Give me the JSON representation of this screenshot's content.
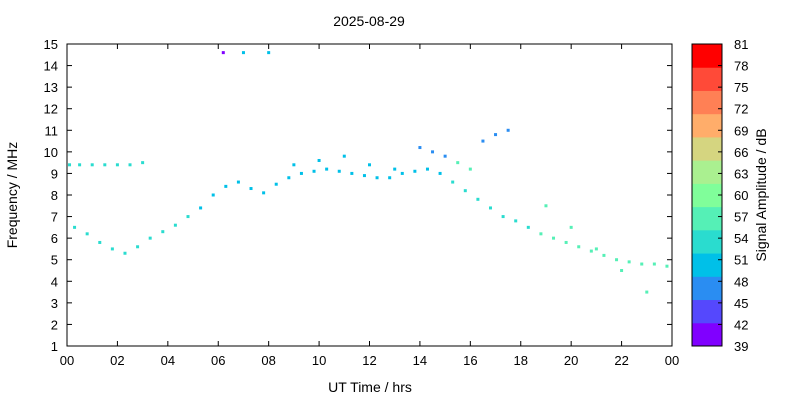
{
  "chart_data": {
    "type": "scatter",
    "title": "2025-08-29",
    "xlabel": "UT Time / hrs",
    "ylabel": "Frequency / MHz",
    "xlim": [
      0,
      24
    ],
    "ylim": [
      1,
      15
    ],
    "x_ticks": [
      "00",
      "02",
      "04",
      "06",
      "08",
      "10",
      "12",
      "14",
      "16",
      "18",
      "20",
      "22",
      "00"
    ],
    "y_ticks": [
      "1",
      "2",
      "3",
      "4",
      "5",
      "6",
      "7",
      "8",
      "9",
      "10",
      "11",
      "12",
      "13",
      "14",
      "15"
    ],
    "colorbar": {
      "label": "Signal Amplitude / dB",
      "ticks": [
        "39",
        "42",
        "45",
        "48",
        "51",
        "54",
        "57",
        "60",
        "63",
        "66",
        "69",
        "72",
        "75",
        "78",
        "81"
      ],
      "min": 39,
      "max": 81,
      "colors": [
        "#8000ff",
        "#5548fd",
        "#2a8df2",
        "#00c0e8",
        "#2adccf",
        "#55f0b6",
        "#80fe9a",
        "#aaf090",
        "#d5d580",
        "#ffad6a",
        "#ff8055",
        "#ff4a38",
        "#ff0000"
      ]
    },
    "series": [
      {
        "x": [
          0.1,
          0.5,
          1.0,
          1.5,
          2.0,
          2.5,
          3.0,
          0.3,
          0.8,
          1.3,
          1.8,
          2.3,
          2.8,
          3.3,
          3.8,
          4.3,
          4.8,
          5.3,
          5.8,
          6.3,
          6.8,
          7.3,
          7.8,
          8.3,
          8.8,
          9.3,
          9.8,
          10.3,
          10.8,
          11.3,
          11.8,
          12.3,
          12.8,
          13.3,
          13.8,
          14.3,
          14.8,
          15.3,
          15.8,
          16.3,
          16.8,
          17.3,
          17.8,
          18.3,
          18.8,
          19.3,
          19.8,
          20.3,
          20.8,
          21.3,
          21.8,
          22.3,
          22.8,
          23.3,
          23.8,
          16.5,
          17.0,
          17.5,
          15.5,
          16.0,
          19.0,
          20.0,
          21.0,
          22.0,
          23.0,
          6.2,
          7.0,
          8.0,
          9.0,
          10.0,
          11.0,
          12.0,
          13.0,
          14.0,
          14.5,
          15.0
        ],
        "y": [
          9.4,
          9.4,
          9.4,
          9.4,
          9.4,
          9.4,
          9.5,
          6.5,
          6.2,
          5.8,
          5.5,
          5.3,
          5.6,
          6.0,
          6.3,
          6.6,
          7.0,
          7.4,
          8.0,
          8.4,
          8.6,
          8.3,
          8.1,
          8.5,
          8.8,
          9.0,
          9.1,
          9.2,
          9.1,
          9.0,
          8.9,
          8.8,
          8.8,
          9.0,
          9.1,
          9.2,
          9.0,
          8.6,
          8.2,
          7.8,
          7.4,
          7.0,
          6.8,
          6.5,
          6.2,
          6.0,
          5.8,
          5.6,
          5.4,
          5.2,
          5.0,
          4.9,
          4.8,
          4.8,
          4.7,
          10.5,
          10.8,
          11.0,
          9.5,
          9.2,
          7.5,
          6.5,
          5.5,
          4.5,
          3.5,
          14.6,
          14.6,
          14.6,
          9.4,
          9.6,
          9.8,
          9.4,
          9.2,
          10.2,
          10.0,
          9.8
        ],
        "amplitude": [
          54,
          54,
          54,
          54,
          54,
          54,
          54,
          54,
          54,
          54,
          54,
          54,
          54,
          54,
          54,
          54,
          54,
          51,
          51,
          51,
          51,
          51,
          51,
          51,
          51,
          51,
          51,
          51,
          51,
          51,
          51,
          51,
          51,
          51,
          51,
          51,
          51,
          54,
          54,
          54,
          54,
          54,
          54,
          54,
          57,
          57,
          57,
          57,
          57,
          57,
          57,
          57,
          57,
          57,
          57,
          48,
          48,
          48,
          57,
          57,
          57,
          57,
          57,
          57,
          57,
          42,
          51,
          51,
          51,
          51,
          51,
          51,
          51,
          48,
          48,
          48
        ]
      }
    ]
  }
}
